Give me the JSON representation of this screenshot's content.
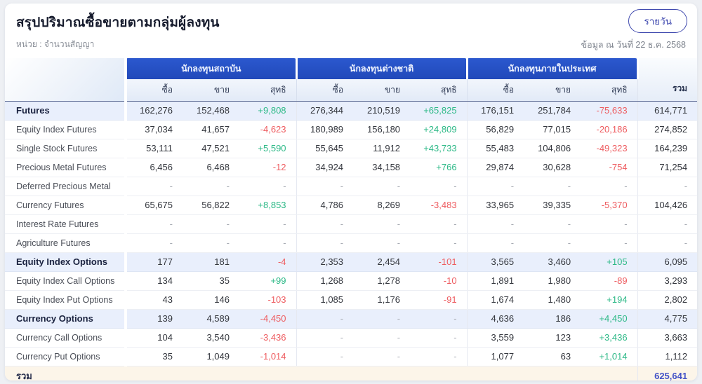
{
  "header": {
    "title": "สรุปปริมาณซื้อขายตามกลุ่มผู้ลงทุน",
    "unit_label": "หน่วย : จำนวนสัญญา",
    "as_of_label": "ข้อมูล ณ วันที่ 22 ธ.ค. 2568",
    "period_button_label": "รายวัน"
  },
  "colors": {
    "group_header_blue": "#2451c8",
    "positive_green": "#2db987",
    "negative_red": "#ee5c60",
    "total_row_beige": "#fcf5e9",
    "grand_total_blue": "#4352c7"
  },
  "table": {
    "groups": [
      "นักลงทุนสถาบัน",
      "นักลงทุนต่างชาติ",
      "นักลงทุนภายในประเทศ"
    ],
    "sub_headers": [
      "ซื้อ",
      "ขาย",
      "สุทธิ"
    ],
    "total_header": "รวม",
    "rows": [
      {
        "label": "Futures",
        "emphasis": true,
        "cells": [
          "162,276",
          "152,468",
          "+9,808",
          "276,344",
          "210,519",
          "+65,825",
          "176,151",
          "251,784",
          "-75,633",
          "614,771"
        ]
      },
      {
        "label": "Equity Index Futures",
        "emphasis": false,
        "cells": [
          "37,034",
          "41,657",
          "-4,623",
          "180,989",
          "156,180",
          "+24,809",
          "56,829",
          "77,015",
          "-20,186",
          "274,852"
        ]
      },
      {
        "label": "Single Stock Futures",
        "emphasis": false,
        "cells": [
          "53,111",
          "47,521",
          "+5,590",
          "55,645",
          "11,912",
          "+43,733",
          "55,483",
          "104,806",
          "-49,323",
          "164,239"
        ]
      },
      {
        "label": "Precious Metal Futures",
        "emphasis": false,
        "cells": [
          "6,456",
          "6,468",
          "-12",
          "34,924",
          "34,158",
          "+766",
          "29,874",
          "30,628",
          "-754",
          "71,254"
        ]
      },
      {
        "label": "Deferred Precious Metal",
        "emphasis": false,
        "cells": [
          "-",
          "-",
          "-",
          "-",
          "-",
          "-",
          "-",
          "-",
          "-",
          "-"
        ]
      },
      {
        "label": "Currency Futures",
        "emphasis": false,
        "cells": [
          "65,675",
          "56,822",
          "+8,853",
          "4,786",
          "8,269",
          "-3,483",
          "33,965",
          "39,335",
          "-5,370",
          "104,426"
        ]
      },
      {
        "label": "Interest Rate Futures",
        "emphasis": false,
        "cells": [
          "-",
          "-",
          "-",
          "-",
          "-",
          "-",
          "-",
          "-",
          "-",
          "-"
        ]
      },
      {
        "label": "Agriculture Futures",
        "emphasis": false,
        "cells": [
          "-",
          "-",
          "-",
          "-",
          "-",
          "-",
          "-",
          "-",
          "-",
          "-"
        ]
      },
      {
        "label": "Equity Index Options",
        "emphasis": true,
        "cells": [
          "177",
          "181",
          "-4",
          "2,353",
          "2,454",
          "-101",
          "3,565",
          "3,460",
          "+105",
          "6,095"
        ]
      },
      {
        "label": "Equity Index Call Options",
        "emphasis": false,
        "cells": [
          "134",
          "35",
          "+99",
          "1,268",
          "1,278",
          "-10",
          "1,891",
          "1,980",
          "-89",
          "3,293"
        ]
      },
      {
        "label": "Equity Index Put Options",
        "emphasis": false,
        "cells": [
          "43",
          "146",
          "-103",
          "1,085",
          "1,176",
          "-91",
          "1,674",
          "1,480",
          "+194",
          "2,802"
        ]
      },
      {
        "label": "Currency Options",
        "emphasis": true,
        "cells": [
          "139",
          "4,589",
          "-4,450",
          "-",
          "-",
          "-",
          "4,636",
          "186",
          "+4,450",
          "4,775"
        ]
      },
      {
        "label": "Currency Call Options",
        "emphasis": false,
        "cells": [
          "104",
          "3,540",
          "-3,436",
          "-",
          "-",
          "-",
          "3,559",
          "123",
          "+3,436",
          "3,663"
        ]
      },
      {
        "label": "Currency Put Options",
        "emphasis": false,
        "cells": [
          "35",
          "1,049",
          "-1,014",
          "-",
          "-",
          "-",
          "1,077",
          "63",
          "+1,014",
          "1,112"
        ]
      }
    ],
    "total_row": {
      "label": "รวม",
      "grand_total": "625,641"
    }
  }
}
